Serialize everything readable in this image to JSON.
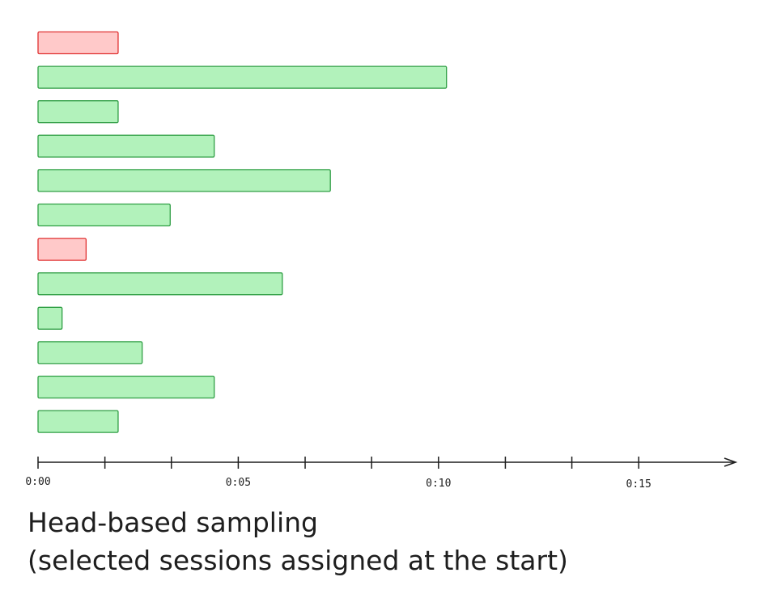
{
  "chart_data": {
    "type": "bar",
    "orientation": "horizontal",
    "title": "Head-based sampling",
    "subtitle": "(selected sessions assigned at the start)",
    "values": [
      2.0,
      10.2,
      2.0,
      4.4,
      7.3,
      3.3,
      1.2,
      6.1,
      0.6,
      2.6,
      4.4,
      2.0
    ],
    "colors": [
      "#ffc9c9",
      "#b2f2bb",
      "#b2f2bb",
      "#b2f2bb",
      "#b2f2bb",
      "#b2f2bb",
      "#ffc9c9",
      "#b2f2bb",
      "#b2f2bb",
      "#b2f2bb",
      "#b2f2bb",
      "#b2f2bb"
    ],
    "stroke_colors": [
      "#e03131",
      "#2f9e44",
      "#2f9e44",
      "#2f9e44",
      "#2f9e44",
      "#2f9e44",
      "#e03131",
      "#2f9e44",
      "#2f9e44",
      "#2f9e44",
      "#2f9e44",
      "#2f9e44"
    ],
    "xlim": [
      0,
      17.3
    ],
    "xticks": [
      {
        "value": 0,
        "label": "0:00"
      },
      {
        "value": 5,
        "label": "0:05"
      },
      {
        "value": 10,
        "label": "0:10"
      },
      {
        "value": 15,
        "label": "0:15"
      }
    ],
    "minor_xticks": [
      1.67,
      3.33,
      6.67,
      8.33,
      11.67,
      13.33
    ]
  }
}
